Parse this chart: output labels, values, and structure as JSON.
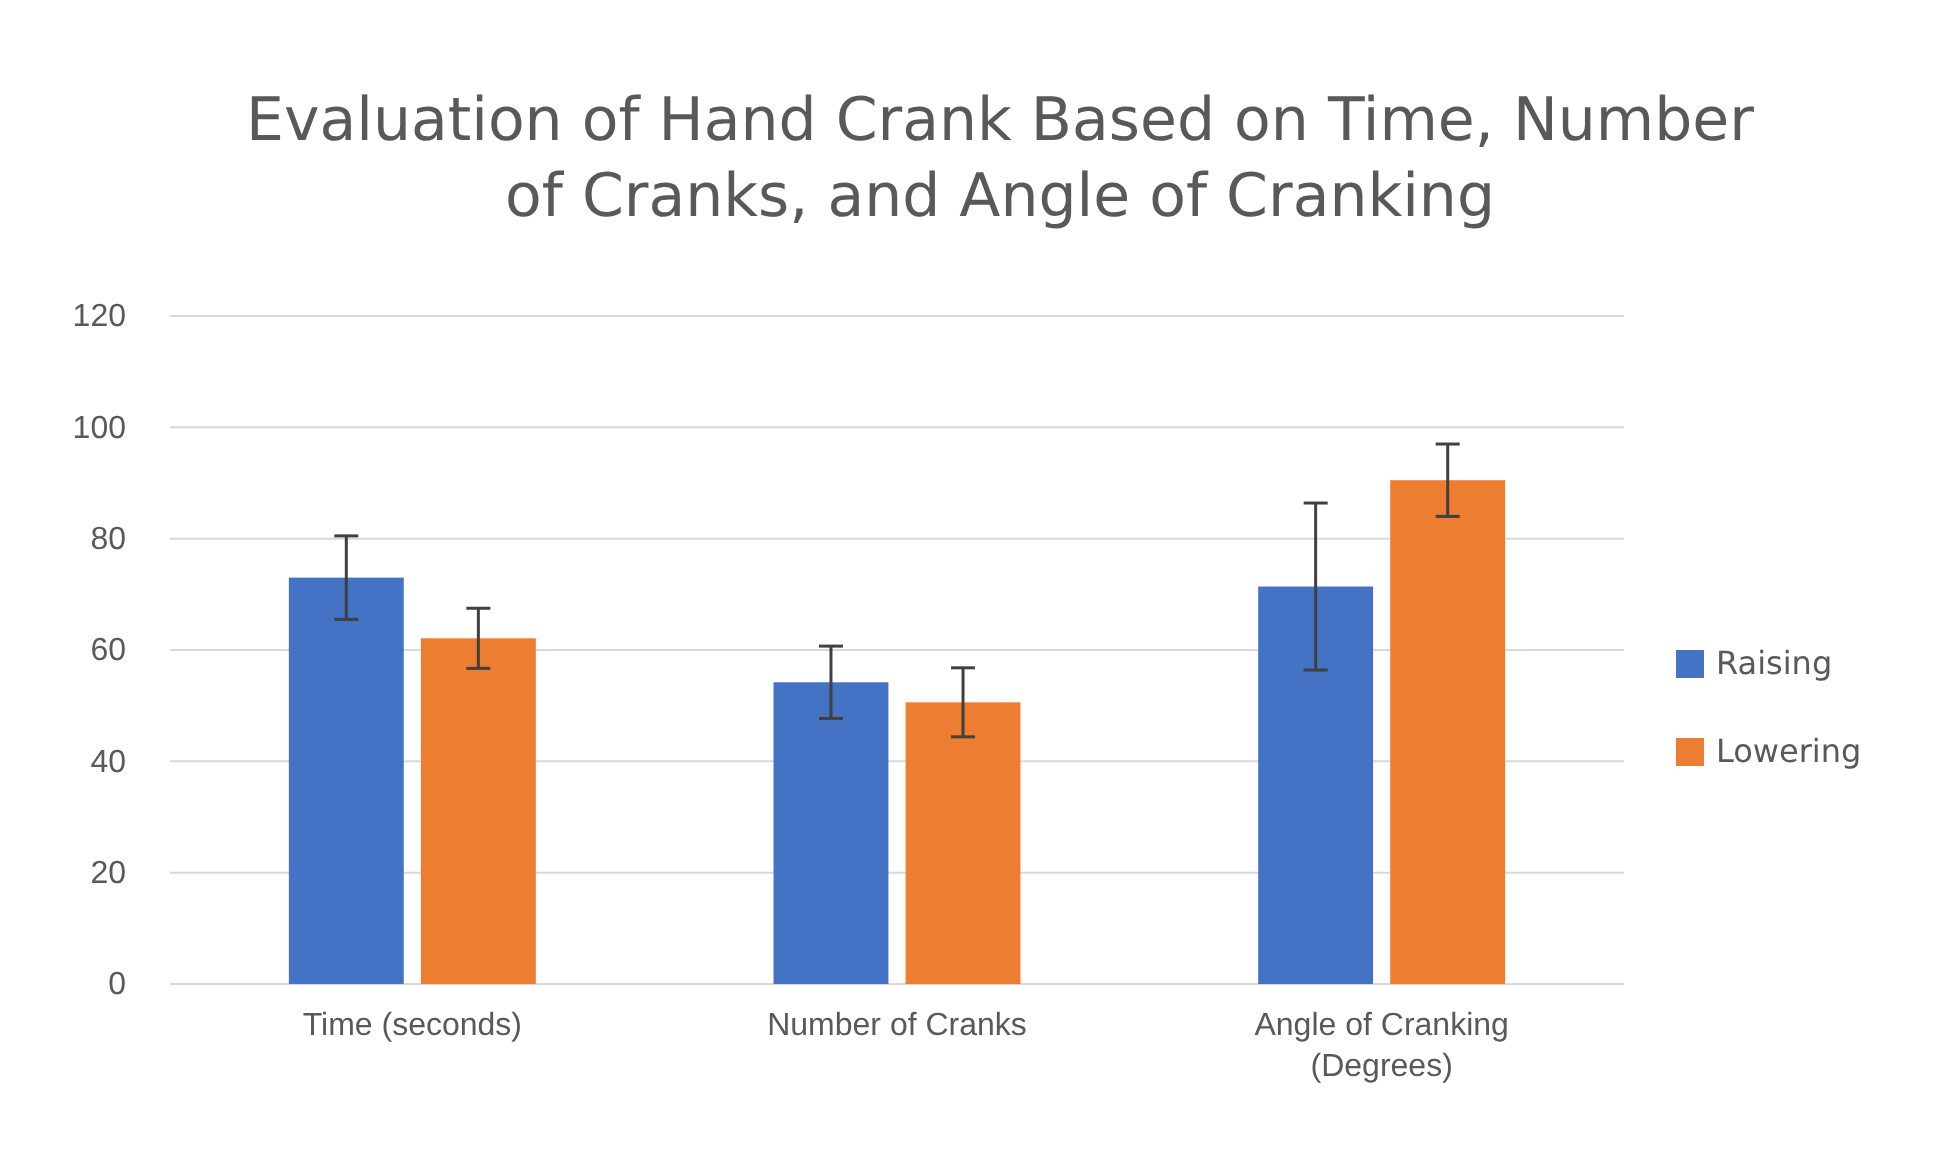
{
  "chart_data": {
    "type": "bar",
    "title": "Evaluation of Hand Crank Based on Time, Number of Cranks, and Angle of Cranking",
    "categories": [
      "Time (seconds)",
      "Number of Cranks",
      "Angle of Cranking (Degrees)"
    ],
    "series": [
      {
        "name": "Raising",
        "color": "#4472c4",
        "values": [
          73,
          54.2,
          71.4
        ],
        "errors": [
          7.5,
          6.5,
          15
        ]
      },
      {
        "name": "Lowering",
        "color": "#ed7d31",
        "values": [
          62.1,
          50.6,
          90.5
        ],
        "errors": [
          5.4,
          6.2,
          6.5
        ]
      }
    ],
    "ylim": [
      0,
      120
    ],
    "yticks": [
      0,
      20,
      40,
      60,
      80,
      100,
      120
    ],
    "grid": "y",
    "legend": "right"
  }
}
